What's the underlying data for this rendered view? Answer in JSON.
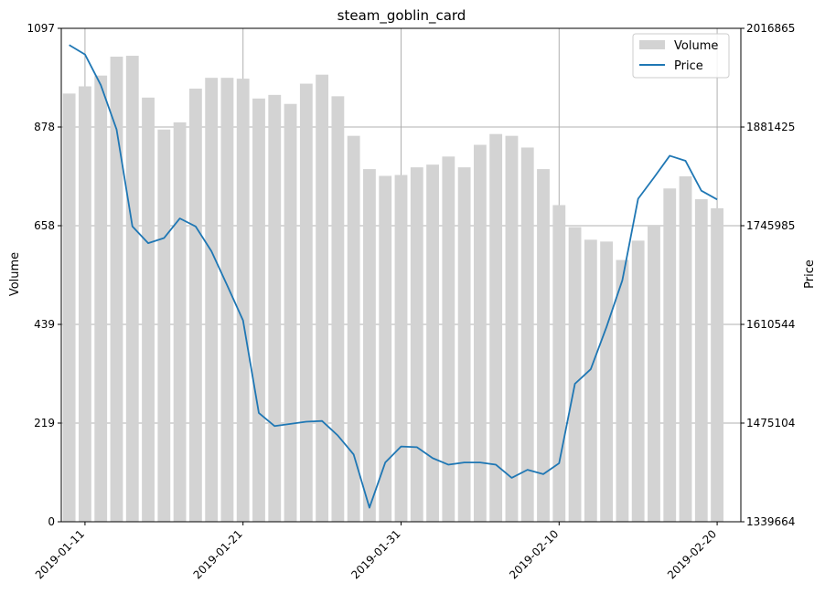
{
  "chart_data": {
    "type": "bar",
    "title": "steam_goblin_card",
    "ylabel": "Volume",
    "y2label": "Price",
    "ylim": [
      0,
      1097
    ],
    "y2lim": [
      1339664,
      2016865
    ],
    "yticks": [
      "0",
      "219",
      "439",
      "658",
      "878",
      "1097"
    ],
    "y2ticks": [
      "1339664",
      "1475104",
      "1610544",
      "1745985",
      "1881425",
      "2016865"
    ],
    "xticks": [
      "2019-01-11",
      "2019-01-21",
      "2019-01-31",
      "2019-02-10",
      "2019-02-20"
    ],
    "grid": true,
    "legend_position": "top-right",
    "colors": {
      "volume": "#d3d3d3",
      "price": "#1f77b4",
      "grid": "#b0b0b0"
    },
    "x": [
      "2019-01-10",
      "2019-01-11",
      "2019-01-12",
      "2019-01-13",
      "2019-01-14",
      "2019-01-15",
      "2019-01-16",
      "2019-01-17",
      "2019-01-18",
      "2019-01-19",
      "2019-01-20",
      "2019-01-21",
      "2019-01-22",
      "2019-01-23",
      "2019-01-24",
      "2019-01-25",
      "2019-01-26",
      "2019-01-27",
      "2019-01-28",
      "2019-01-29",
      "2019-01-30",
      "2019-01-31",
      "2019-02-01",
      "2019-02-02",
      "2019-02-03",
      "2019-02-04",
      "2019-02-05",
      "2019-02-06",
      "2019-02-07",
      "2019-02-08",
      "2019-02-09",
      "2019-02-10",
      "2019-02-11",
      "2019-02-12",
      "2019-02-13",
      "2019-02-14",
      "2019-02-15",
      "2019-02-16",
      "2019-02-17",
      "2019-02-18",
      "2019-02-19",
      "2019-02-20"
    ],
    "series": [
      {
        "name": "Volume",
        "type": "bar",
        "values": [
          952,
          968,
          992,
          1034,
          1036,
          943,
          872,
          888,
          963,
          987,
          987,
          985,
          941,
          949,
          929,
          974,
          994,
          946,
          858,
          784,
          769,
          771,
          788,
          794,
          812,
          788,
          838,
          862,
          858,
          832,
          784,
          704,
          655,
          627,
          623,
          582,
          625,
          660,
          741,
          768,
          717,
          697
        ]
      },
      {
        "name": "Price",
        "type": "line",
        "values": [
          1994000,
          1981000,
          1939000,
          1878000,
          1745000,
          1722000,
          1729000,
          1756000,
          1745000,
          1711000,
          1664000,
          1616000,
          1489000,
          1471000,
          1474000,
          1477000,
          1478000,
          1458000,
          1432000,
          1359000,
          1421000,
          1443000,
          1442000,
          1427000,
          1418000,
          1421000,
          1421000,
          1418000,
          1400000,
          1411000,
          1405000,
          1420000,
          1529000,
          1549000,
          1607000,
          1671000,
          1783000,
          1812000,
          1842000,
          1835000,
          1794000,
          1782000
        ]
      }
    ]
  }
}
